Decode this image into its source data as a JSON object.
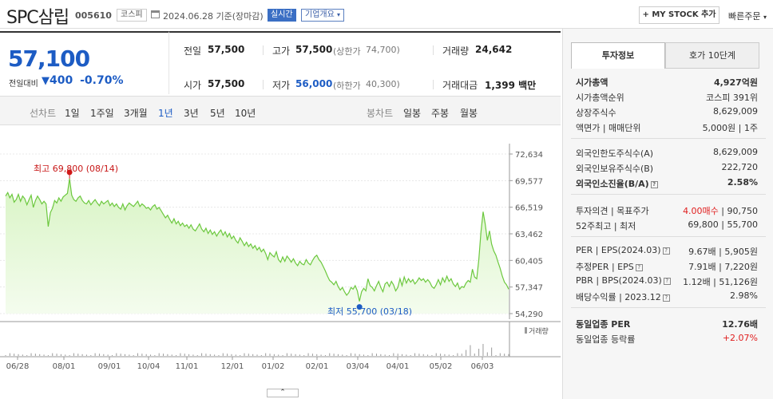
{
  "header": {
    "title": "SPC삼립",
    "code": "005610",
    "market": "코스피",
    "date_text": "2024.06.28 기준(장마감)",
    "realtime": "실시간",
    "company_overview": "기업개요",
    "mystock": "+ MY STOCK 추가",
    "quick_order": "빠른주문"
  },
  "price": {
    "current": "57,100",
    "change_label": "전일대비",
    "change_value": "400",
    "change_pct": "-0.70%",
    "down_color": "#1d5cc4"
  },
  "info": {
    "prev_label": "전일",
    "prev": "57,500",
    "high_label": "고가",
    "high": "57,500",
    "upper_label": "(상한가",
    "upper": "74,700)",
    "vol_label": "거래량",
    "vol": "24,642",
    "open_label": "시가",
    "open": "57,500",
    "low_label": "저가",
    "low": "56,000",
    "lower_label": "(하한가",
    "lower": "40,300)",
    "amt_label": "거래대금",
    "amt": "1,399 백만"
  },
  "tabs": {
    "line_label": "선차트",
    "periods": [
      "1일",
      "1주일",
      "3개월",
      "1년",
      "3년",
      "5년",
      "10년"
    ],
    "selected": "1년",
    "candle_label": "봉차트",
    "candles": [
      "일봉",
      "주봉",
      "월봉"
    ]
  },
  "chart_data": {
    "type": "area",
    "title": "",
    "ylabel": "",
    "ylim": [
      54290,
      72634
    ],
    "yticks": [
      "72,634",
      "69,577",
      "66,519",
      "63,462",
      "60,405",
      "57,347",
      "54,290"
    ],
    "xticks": [
      "06/28",
      "08/01",
      "09/01",
      "10/04",
      "11/01",
      "12/01",
      "01/02",
      "02/01",
      "03/04",
      "04/01",
      "05/02",
      "06/03"
    ],
    "high_label": "최고 69,800 (08/14)",
    "low_label": "최저 55,700 (03/18)",
    "volume_label": "거래량",
    "values": [
      67800,
      68200,
      67600,
      68000,
      67100,
      67400,
      68000,
      67200,
      67800,
      67500,
      66800,
      67400,
      67900,
      66500,
      67300,
      67800,
      67400,
      66900,
      67200,
      66900,
      64300,
      65900,
      66400,
      67300,
      67000,
      67600,
      67200,
      67700,
      67900,
      68100,
      69800,
      67900,
      67400,
      67200,
      67600,
      67800,
      67300,
      67000,
      66900,
      67300,
      66800,
      67100,
      67400,
      67000,
      66700,
      67200,
      66900,
      67100,
      67300,
      66700,
      67000,
      66600,
      66900,
      66500,
      66300,
      66900,
      66200,
      66700,
      67000,
      66800,
      66600,
      66900,
      67200,
      66600,
      66900,
      66700,
      66400,
      66500,
      66200,
      66600,
      66800,
      66300,
      66500,
      66100,
      65700,
      65300,
      65600,
      65100,
      64700,
      65200,
      64600,
      64900,
      64400,
      64700,
      64300,
      64500,
      64100,
      64500,
      64000,
      63800,
      64200,
      64600,
      64000,
      63700,
      64100,
      63500,
      63900,
      63400,
      63700,
      63200,
      63600,
      63900,
      63300,
      63700,
      63100,
      63500,
      62900,
      63200,
      62700,
      62400,
      63000,
      62600,
      62100,
      62500,
      62000,
      62300,
      61800,
      62100,
      61600,
      61900,
      61400,
      61700,
      61200,
      60500,
      61300,
      61000,
      60800,
      61400,
      60500,
      60200,
      60800,
      60300,
      60900,
      60600,
      60200,
      60600,
      60100,
      59800,
      60300,
      60000,
      59900,
      60500,
      60100,
      59900,
      60400,
      60800,
      61000,
      60500,
      60200,
      59700,
      59200,
      58600,
      58100,
      57900,
      57600,
      58000,
      57400,
      57000,
      57300,
      56800,
      56400,
      56700,
      57300,
      57100,
      57500,
      56900,
      55700,
      56800,
      57200,
      56900,
      58300,
      57500,
      57300,
      56900,
      57500,
      58000,
      57300,
      56800,
      57700,
      57900,
      57400,
      58000,
      57600,
      56900,
      57300,
      58300,
      57500,
      58500,
      57800,
      58300,
      57900,
      58200,
      57700,
      58000,
      58400,
      58100,
      58300,
      57900,
      58200,
      57900,
      57400,
      57200,
      57600,
      58200,
      57600,
      58400,
      57900,
      58600,
      58000,
      58300,
      57700,
      57400,
      57800,
      57100,
      57400,
      57300,
      57800,
      58100,
      57900,
      59400,
      58500,
      58300,
      60500,
      63700,
      66000,
      64600,
      62700,
      63800,
      62300,
      61500,
      61000,
      60200,
      59500,
      58600,
      57900,
      57600,
      57100
    ]
  },
  "panel": {
    "tab_invest": "투자정보",
    "tab_hoga": "호가 10단계",
    "rows1": [
      {
        "label": "시가총액",
        "value": "4,927억원"
      },
      {
        "label": "시가총액순위",
        "value": "코스피 391위"
      },
      {
        "label": "상장주식수",
        "value": "8,629,009"
      },
      {
        "label": "액면가 | 매매단위",
        "value": "5,000원 | 1주"
      }
    ],
    "rows2": [
      {
        "label": "외국인한도주식수(A)",
        "value": "8,629,009"
      },
      {
        "label": "외국인보유주식수(B)",
        "value": "222,720"
      },
      {
        "label": "외국인소진율(B/A)",
        "value": "2.58%"
      }
    ],
    "opinion_label": "투자의견 | 목표주가",
    "opinion": "4.00매수",
    "target": "90,750",
    "w52_label": "52주최고 | 최저",
    "w52": "69,800 | 55,700",
    "per_label": "PER | EPS(2024.03)",
    "per": "9.67배 | 5,905원",
    "est_label": "추정PER | EPS",
    "est": "7.91배 | 7,220원",
    "pbr_label": "PBR | BPS(2024.03)",
    "pbr": "1.12배 | 51,126원",
    "div_label": "배당수익률 | 2023.12",
    "div": "2.98%",
    "ind_per_label": "동일업종 PER",
    "ind_per": "12.76배",
    "ind_rate_label": "동일업종 등락률",
    "ind_rate": "+2.07%",
    "up_color": "#e01e1e"
  },
  "collapse_btn": "⌃"
}
